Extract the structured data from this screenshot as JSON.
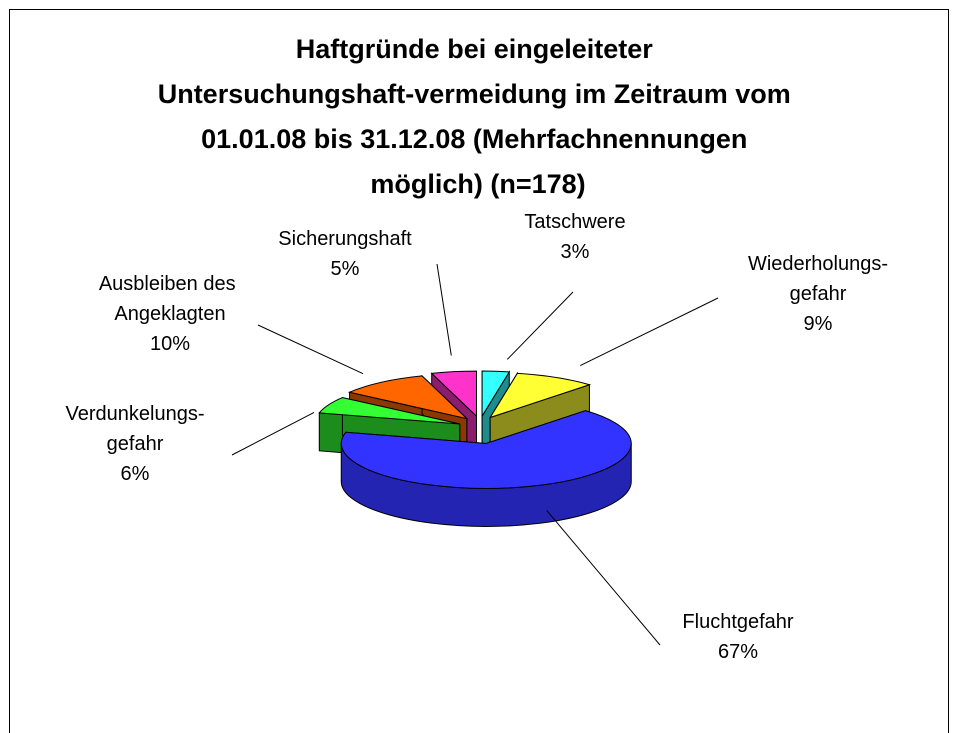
{
  "chart_data": {
    "type": "pie3d",
    "title": "Haftgründe bei eingeleiteter Untersuchungshaft-vermeidung im Zeitraum vom 01.01.08 bis 31.12.08 (Mehrfachnennungen möglich) (n=178)",
    "categories": [
      "Tatschwere",
      "Wiederholungs-gefahr",
      "Fluchtgefahr",
      "Verdunkelungs-gefahr",
      "Ausbleiben des Angeklagten",
      "Sicherungshaft"
    ],
    "values": [
      3,
      9,
      67,
      6,
      10,
      5
    ],
    "value_labels": [
      "3%",
      "9%",
      "67%",
      "6%",
      "10%",
      "5%"
    ],
    "colors": [
      "#33ffff",
      "#ffff33",
      "#3333ff",
      "#33ff33",
      "#ff6600",
      "#ff33cc"
    ]
  }
}
